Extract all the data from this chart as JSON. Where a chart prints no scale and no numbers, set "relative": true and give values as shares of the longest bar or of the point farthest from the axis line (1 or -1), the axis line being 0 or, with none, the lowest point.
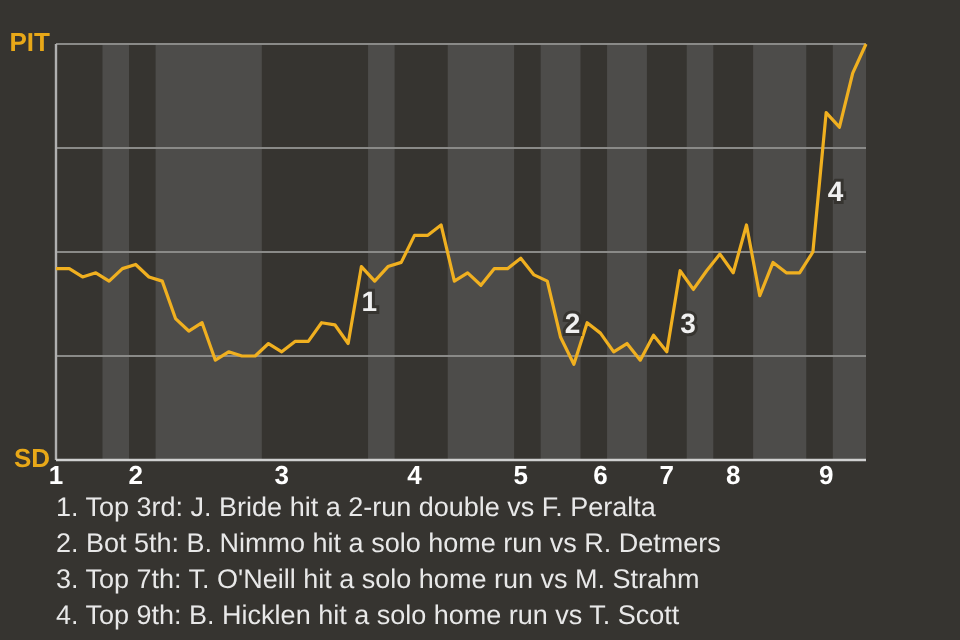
{
  "chart_data": {
    "type": "line",
    "relative": true,
    "categories": [
      "1",
      null,
      null,
      null,
      null,
      null,
      "2",
      null,
      null,
      null,
      null,
      null,
      null,
      null,
      null,
      null,
      null,
      "3",
      null,
      null,
      null,
      null,
      null,
      null,
      null,
      null,
      null,
      "4",
      null,
      null,
      null,
      null,
      null,
      null,
      null,
      "5",
      null,
      null,
      null,
      null,
      null,
      "6",
      null,
      null,
      null,
      null,
      "7",
      null,
      null,
      null,
      null,
      "8",
      null,
      null,
      null,
      null,
      null,
      null,
      "9",
      null,
      null,
      null
    ],
    "series": [
      {
        "color": "#f0b020",
        "values": [
          0.46,
          0.46,
          0.44,
          0.45,
          0.43,
          0.46,
          0.47,
          0.44,
          0.43,
          0.34,
          0.31,
          0.33,
          0.24,
          0.26,
          0.25,
          0.25,
          0.28,
          0.26,
          0.285,
          0.285,
          0.33,
          0.325,
          0.28,
          0.465,
          0.43,
          0.465,
          0.475,
          0.54,
          0.54,
          0.565,
          0.43,
          0.45,
          0.42,
          0.46,
          0.46,
          0.485,
          0.445,
          0.43,
          0.295,
          0.23,
          0.33,
          0.305,
          0.26,
          0.28,
          0.24,
          0.3,
          0.26,
          0.455,
          0.41,
          0.455,
          0.495,
          0.45,
          0.565,
          0.395,
          0.475,
          0.45,
          0.45,
          0.5,
          0.835,
          0.8,
          0.93,
          1
        ]
      }
    ],
    "ref_lines": [
      {
        "axis": "y",
        "value": 0.25,
        "color": "#8a8a88"
      },
      {
        "axis": "y",
        "value": 0.5,
        "color": "#8a8a88"
      },
      {
        "axis": "y",
        "value": 0.75,
        "color": "#8a8a88"
      },
      {
        "axis": "y",
        "value": 1,
        "color": "#8a8a88"
      }
    ],
    "annotations": [
      "PIT",
      "SD",
      "1",
      "2",
      "3",
      "4",
      "1. Top 3rd: J. Bride hit a 2-run double vs F. Peralta",
      "2. Bot 5th: B. Nimmo hit a solo home run vs R. Detmers",
      "3. Top 7th: T. O'Neill hit a solo home run vs M. Strahm",
      "4. Top 9th: B. Hicklen hit a solo home run vs T. Scott"
    ]
  }
}
